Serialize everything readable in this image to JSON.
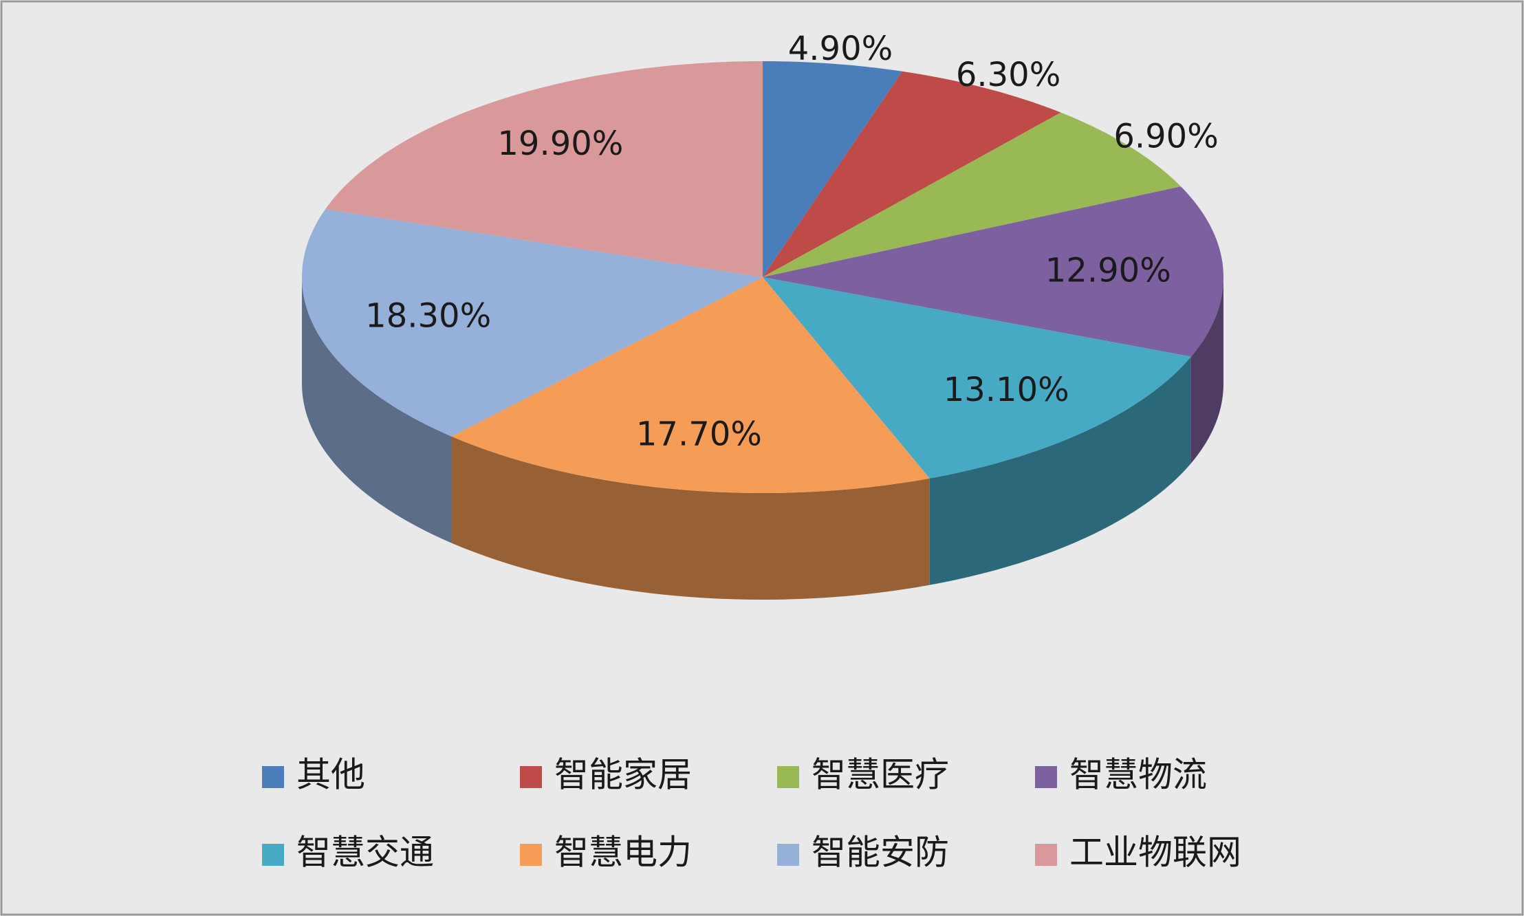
{
  "chart_data": {
    "type": "pie",
    "three_d": true,
    "legend": "bottom",
    "categories": [
      "其他",
      "智能家居",
      "智慧医疗",
      "智慧物流",
      "智慧交通",
      "智慧电力",
      "智能安防",
      "工业物联网"
    ],
    "values": [
      4.9,
      6.3,
      6.9,
      12.9,
      13.1,
      17.7,
      18.3,
      19.9
    ],
    "value_labels": [
      "4.90%",
      "6.30%",
      "6.90%",
      "12.90%",
      "13.10%",
      "17.70%",
      "18.30%",
      "19.90%"
    ],
    "colors": [
      "#4a7ebb",
      "#be4b48",
      "#98b954",
      "#7d60a0",
      "#46aac5",
      "#f59d56",
      "#95b0d9",
      "#d9999a"
    ]
  }
}
